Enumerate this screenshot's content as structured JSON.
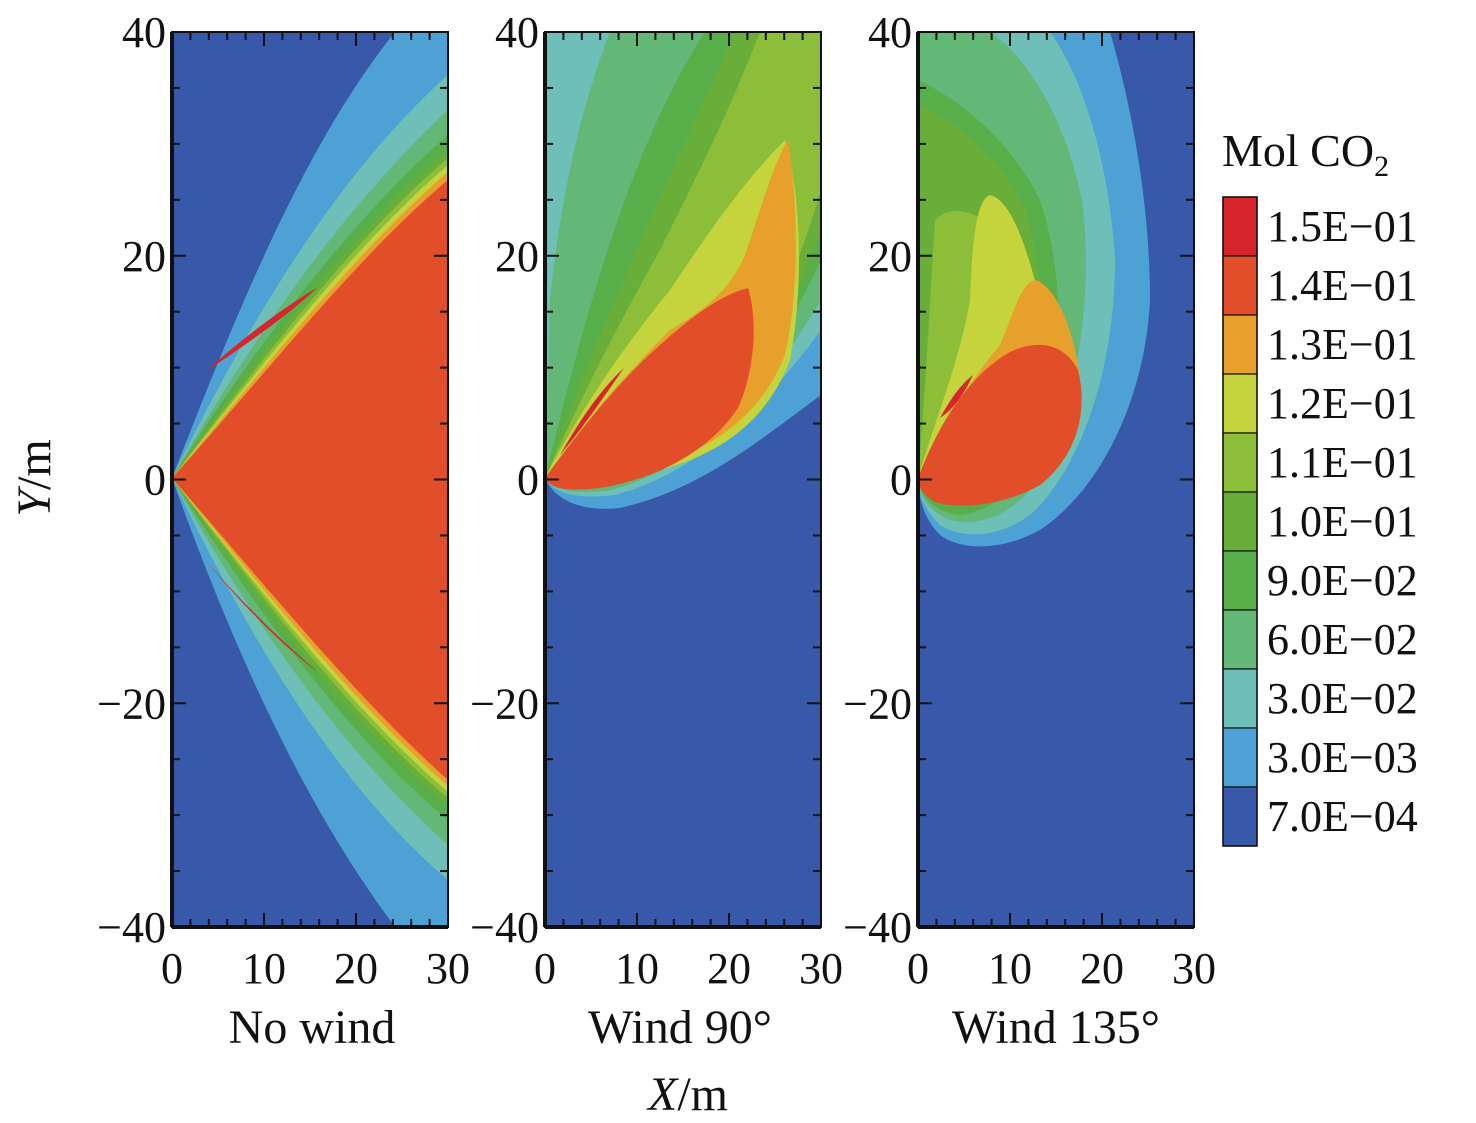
{
  "chart_data": {
    "type": "heatmap",
    "subtype": "filled-contour",
    "title": "",
    "xlabel_var": "X",
    "xlabel_unit": "/m",
    "ylabel_var": "Y",
    "ylabel_unit": "/m",
    "xlim": [
      0,
      30
    ],
    "ylim": [
      -40,
      40
    ],
    "x_ticks": [
      0,
      10,
      20,
      30
    ],
    "x_tick_labels": [
      "0",
      "10",
      "20",
      "30"
    ],
    "y_ticks": [
      40,
      20,
      0,
      -20,
      -40
    ],
    "y_tick_labels": [
      "40",
      "20",
      "0",
      "−20",
      "−40"
    ],
    "panels": [
      {
        "name": "No wind"
      },
      {
        "name": "Wind 90°"
      },
      {
        "name": "Wind 135°"
      }
    ],
    "legend": {
      "title_main": "Mol CO",
      "title_sub": "2",
      "placement": "right",
      "levels": [
        {
          "value": 0.15,
          "label": "1.5E−01",
          "color": "#d7262b"
        },
        {
          "value": 0.14,
          "label": "1.4E−01",
          "color": "#e24e2a"
        },
        {
          "value": 0.13,
          "label": "1.3E−01",
          "color": "#e8a02d"
        },
        {
          "value": 0.12,
          "label": "1.2E−01",
          "color": "#c5d43c"
        },
        {
          "value": 0.11,
          "label": "1.1E−01",
          "color": "#8cbe3a"
        },
        {
          "value": 0.1,
          "label": "1.0E−01",
          "color": "#6aae3a"
        },
        {
          "value": 0.09,
          "label": "9.0E−02",
          "color": "#58ae48"
        },
        {
          "value": 0.06,
          "label": "6.0E−02",
          "color": "#63b777"
        },
        {
          "value": 0.03,
          "label": "3.0E−02",
          "color": "#6dbfb8"
        },
        {
          "value": 0.003,
          "label": "3.0E−03",
          "color": "#4ea1d4"
        },
        {
          "value": 0.0007,
          "label": "7.0E−04",
          "color": "#3858a9"
        }
      ]
    }
  }
}
